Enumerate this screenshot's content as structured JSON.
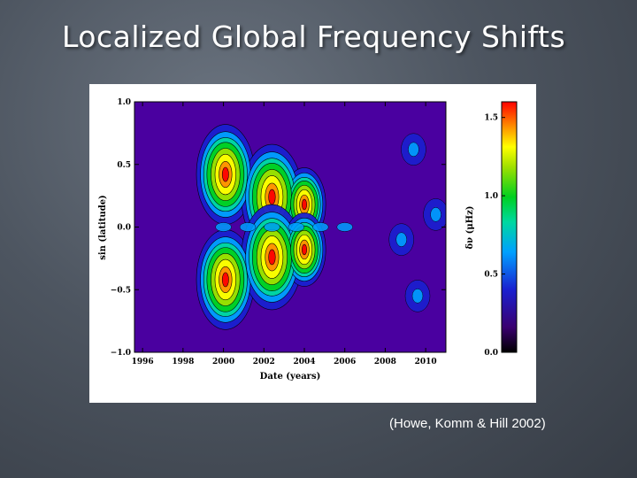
{
  "slide": {
    "title": "Localized Global Frequency Shifts",
    "citation": "(Howe, Komm & Hill 2002)"
  },
  "chart_data": {
    "type": "heatmap",
    "title": "",
    "xlabel": "Date (years)",
    "ylabel": "sin (latitude)",
    "colorbar_label": "δν (μHz)",
    "xlim": [
      1995.6,
      2011.0
    ],
    "ylim": [
      -1.0,
      1.0
    ],
    "x_ticks": [
      "1996",
      "1998",
      "2000",
      "2002",
      "2004",
      "2006",
      "2008",
      "2010"
    ],
    "x_tick_values": [
      1996,
      1998,
      2000,
      2002,
      2004,
      2006,
      2008,
      2010
    ],
    "y_ticks": [
      "1.0",
      "0.5",
      "0.0",
      "−0.5",
      "−1.0"
    ],
    "y_tick_values": [
      1.0,
      0.5,
      0.0,
      -0.5,
      -1.0
    ],
    "colorbar_range": [
      0.0,
      1.6
    ],
    "colorbar_ticks": [
      "1.5",
      "1.0",
      "0.5",
      "0.0"
    ],
    "colorbar_tick_values": [
      1.5,
      1.0,
      0.5,
      0.0
    ],
    "colormap": [
      "#000000",
      "#3a0070",
      "#1a20d0",
      "#00a0ff",
      "#00d8a0",
      "#00d020",
      "#a0e000",
      "#ffff00",
      "#ff9000",
      "#ff0000"
    ],
    "butterfly_wings": [
      {
        "hemisphere": "north",
        "peak_year": 2001.0,
        "peak_sin_lat": 0.3,
        "peak_value": 1.5
      },
      {
        "hemisphere": "south",
        "peak_year": 2001.0,
        "peak_sin_lat": -0.3,
        "peak_value": 1.5
      }
    ],
    "grid": false,
    "contours": true
  }
}
